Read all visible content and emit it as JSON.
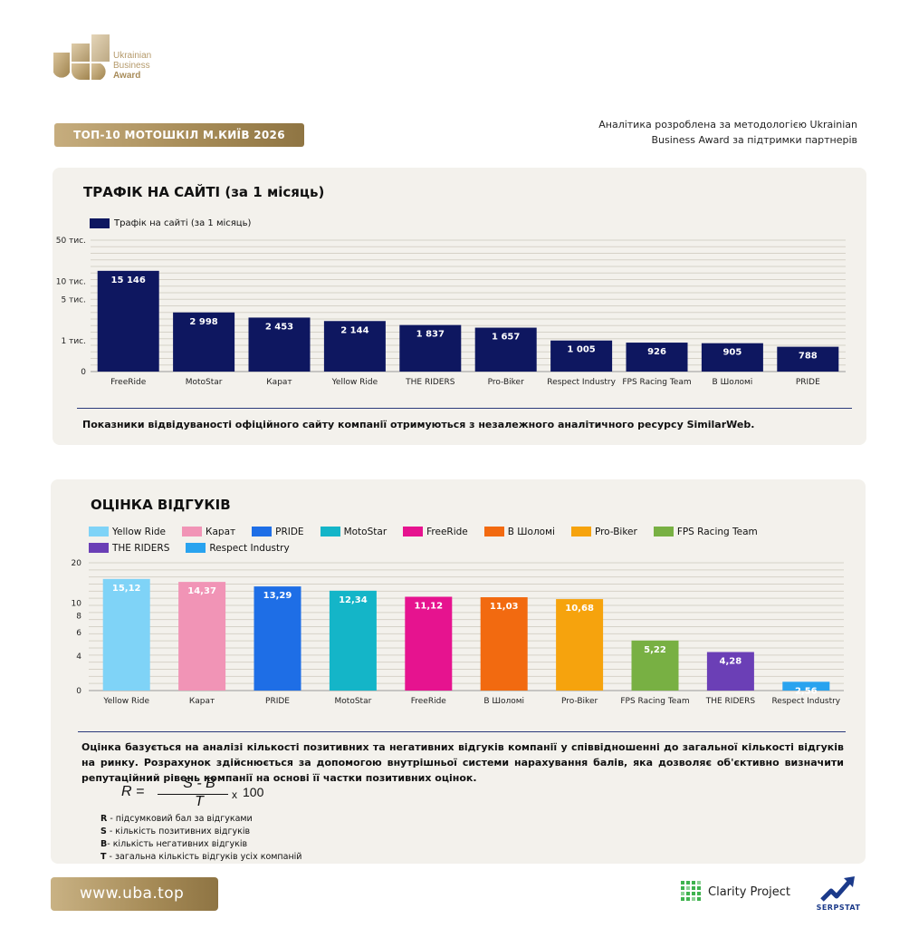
{
  "header": {
    "logo_line1": "Ukrainian",
    "logo_line2": "Business",
    "logo_line3": "Award",
    "title": "ТОП-10 МОТОШКІЛ М.КИЇВ 2026",
    "methodology": "Аналітика розроблена за методологією Ukrainian Business Award за підтримки партнерів"
  },
  "traffic": {
    "title": "ТРАФІК НА САЙТІ (за 1 місяць)",
    "legend": "Трафік на сайті (за 1 місяць)",
    "note": "Показники відвідуваності офіційного сайту компанії отримуються з незалежного аналітичного ресурсу SimilarWeb."
  },
  "reviews": {
    "title": "ОЦІНКА ВІДГУКІВ",
    "paragraph": "Оцінка базується на аналізі кількості позитивних та негативних відгуків компанії у співвідношенні до загальної кількості відгуків на ринку. Розрахунок здійснюється за допомогою внутрішньої системи нарахування балів, яка дозволяє об'єктивно визначити репутаційний рівень компанії на основі її частки позитивних оцінок.",
    "formula": {
      "lhs": "R =",
      "numerator": "S - B",
      "denominator": "T",
      "multiplier": "x",
      "factor": "100"
    },
    "definitions": [
      {
        "key": "R",
        "text": " - підсумковий бал за відгуками"
      },
      {
        "key": "S",
        "text": " - кількість позитивних відгуків"
      },
      {
        "key": "B",
        "text": "-  кількість негативних відгуків"
      },
      {
        "key": "T",
        "text": " - загальна кількість відгуків усіх компаній"
      }
    ]
  },
  "footer": {
    "url": "www.uba.top",
    "clarity": "Clarity Project",
    "serpstat": "SERPSTAT"
  },
  "chart_data": [
    {
      "type": "bar",
      "title": "ТРАФІК НА САЙТІ (за 1 місяць)",
      "scale": "log",
      "yticks": [
        {
          "value": 0,
          "label": "0"
        },
        {
          "value": 1000,
          "label": "1 тис."
        },
        {
          "value": 5000,
          "label": "5 тис."
        },
        {
          "value": 10000,
          "label": "10 тис."
        },
        {
          "value": 50000,
          "label": "50 тис."
        }
      ],
      "ylim": [
        0,
        50000
      ],
      "grid": true,
      "bar_color": "#0e1760",
      "categories": [
        "FreeRide",
        "MotoStar",
        "Карат",
        "Yellow Ride",
        "THE RIDERS",
        "Pro-Biker",
        "Respect Industry",
        "FPS Racing Team",
        "В Шоломі",
        "PRIDE"
      ],
      "series": [
        {
          "name": "Трафік на сайті (за 1 місяць)",
          "values": [
            15146,
            2998,
            2453,
            2144,
            1837,
            1657,
            1005,
            926,
            905,
            788
          ],
          "labels": [
            "15 146",
            "2 998",
            "2 453",
            "2 144",
            "1 837",
            "1 657",
            "1 005",
            "926",
            "905",
            "788"
          ]
        }
      ]
    },
    {
      "type": "bar",
      "title": "ОЦІНКА ВІДГУКІВ",
      "scale": "log",
      "yticks": [
        {
          "value": 0,
          "label": "0"
        },
        {
          "value": 4,
          "label": "4"
        },
        {
          "value": 6,
          "label": "6"
        },
        {
          "value": 8,
          "label": "8"
        },
        {
          "value": 10,
          "label": "10"
        },
        {
          "value": 20,
          "label": "20"
        }
      ],
      "ylim": [
        0,
        20
      ],
      "grid": true,
      "legend_position": "top",
      "categories": [
        "Yellow Ride",
        "Карат",
        "PRIDE",
        "MotoStar",
        "FreeRide",
        "В Шоломі",
        "Pro-Biker",
        "FPS Racing Team",
        "THE RIDERS",
        "Respect Industry"
      ],
      "values": [
        15.12,
        14.37,
        13.29,
        12.34,
        11.12,
        11.03,
        10.68,
        5.22,
        4.28,
        2.56
      ],
      "labels": [
        "15,12",
        "14,37",
        "13,29",
        "12,34",
        "11,12",
        "11,03",
        "10,68",
        "5,22",
        "4,28",
        "2,56"
      ],
      "colors": [
        "#7fd3f7",
        "#f194b6",
        "#1e6ee6",
        "#14b5c8",
        "#e6138f",
        "#f26a10",
        "#f6a30d",
        "#78b043",
        "#6b3fb6",
        "#29a3ef"
      ],
      "legend": [
        "Yellow Ride",
        "Карат",
        "PRIDE",
        "MotoStar",
        "FreeRide",
        "В Шоломі",
        "Pro-Biker",
        "FPS Racing Team",
        "THE RIDERS",
        "Respect Industry"
      ]
    }
  ]
}
